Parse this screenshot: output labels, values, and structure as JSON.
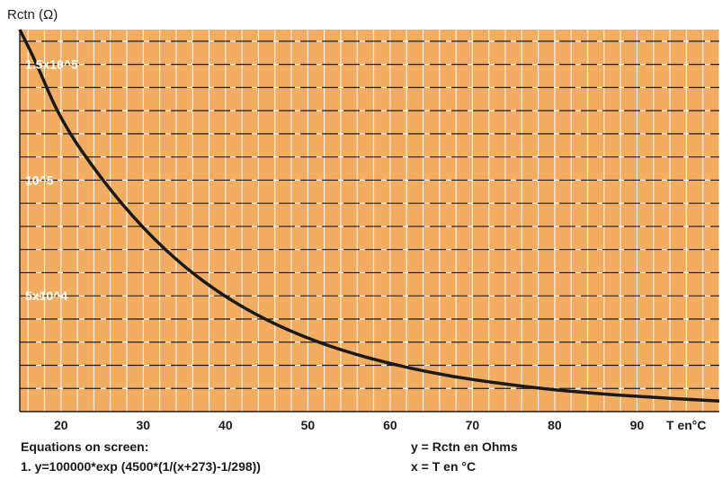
{
  "colors": {
    "plot_background": "#f2ad63",
    "grid_minor": "#ffffff",
    "grid_major": "#1a1a1a",
    "curve": "#1a1a1a"
  },
  "chart_data": {
    "type": "line",
    "ylabel": "Rctn (Ω)",
    "xlabel": "T en°C",
    "xlim": [
      15,
      100
    ],
    "ylim": [
      0,
      165000
    ],
    "x_ticks": [
      20,
      30,
      40,
      50,
      60,
      70,
      80,
      90
    ],
    "x_tick_labels": [
      "20",
      "30",
      "40",
      "50",
      "60",
      "70",
      "80",
      "90"
    ],
    "y_ticks": [
      150000,
      100000,
      50000
    ],
    "y_tick_labels": [
      "1.5x10^5",
      "10^5",
      "5x10^4"
    ],
    "grid": true,
    "series": [
      {
        "x": [
          15,
          17,
          20,
          25,
          30,
          35,
          40,
          45,
          50,
          55,
          60,
          65,
          70,
          75,
          80,
          85,
          90,
          95,
          100
        ],
        "y": [
          170000,
          150700,
          125600,
          100000,
          79000,
          62300,
          49400,
          39400,
          31600,
          25500,
          20700,
          16800,
          13800,
          11400,
          9400,
          7800,
          6600,
          5500,
          4600
        ]
      }
    ]
  },
  "notes": {
    "equations_header": "Equations on screen:",
    "equation_1": "1. y=100000*exp (4500*(1/(x+273)-1/298))",
    "y_def": "y = Rctn en Ohms",
    "x_def": "x = T en °C"
  }
}
